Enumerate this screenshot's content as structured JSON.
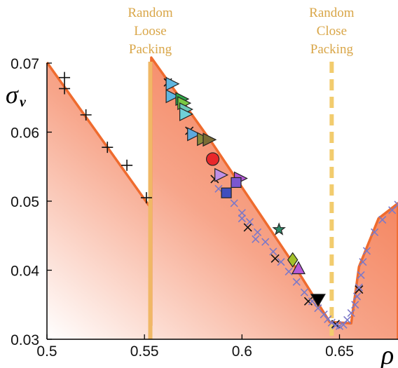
{
  "chart_data": {
    "type": "scatter",
    "xlabel": "ρ",
    "ylabel": "σ",
    "ylabel_sub": "v",
    "xlim": [
      0.5,
      0.68
    ],
    "ylim": [
      0.03,
      0.07
    ],
    "xticks": [
      "0.5",
      "0.55",
      "0.6",
      "0.65"
    ],
    "xtick_values": [
      0.5,
      0.55,
      0.6,
      0.65
    ],
    "yticks": [
      "0.03",
      "0.04",
      "0.05",
      "0.06",
      "0.07"
    ],
    "ytick_values": [
      0.03,
      0.04,
      0.05,
      0.06,
      0.07
    ],
    "annotations": [
      {
        "lines": [
          "Random",
          "Loose",
          "Packing"
        ],
        "x": 0.553
      },
      {
        "lines": [
          "Random",
          "Close",
          "Packing"
        ],
        "x": 0.646
      }
    ],
    "vlines": [
      {
        "x": 0.553,
        "style": "solid",
        "color": "#f0b866"
      },
      {
        "x": 0.646,
        "style": "dashed",
        "color": "#f2cc6e"
      }
    ],
    "boundary": [
      [
        0.5,
        0.0701
      ],
      [
        0.553,
        0.0491
      ],
      [
        0.553,
        0.032
      ],
      [
        0.5535,
        0.032
      ],
      [
        0.5535,
        0.0708
      ],
      [
        0.585,
        0.0583
      ],
      [
        0.625,
        0.0415
      ],
      [
        0.645,
        0.0325
      ],
      [
        0.656,
        0.0323
      ],
      [
        0.66,
        0.0405
      ],
      [
        0.67,
        0.0475
      ],
      [
        0.68,
        0.0497
      ],
      [
        0.68,
        0.03
      ]
    ],
    "colors": {
      "fill": "#f47e54",
      "edge": "#ef6b2e",
      "plus": "#111111",
      "cross_dark": "#111111",
      "cross_blue": "#7b78c8"
    },
    "series": [
      {
        "marker": "plus",
        "points": [
          [
            0.509,
            0.0679
          ],
          [
            0.509,
            0.0663
          ],
          [
            0.52,
            0.0625
          ],
          [
            0.531,
            0.0578
          ],
          [
            0.541,
            0.0552
          ],
          [
            0.551,
            0.0505
          ]
        ]
      },
      {
        "marker": "cross_dark",
        "points": [
          [
            0.562,
            0.0672
          ],
          [
            0.573,
            0.0602
          ],
          [
            0.586,
            0.0532
          ],
          [
            0.603,
            0.0462
          ],
          [
            0.617,
            0.0417
          ],
          [
            0.634,
            0.0355
          ],
          [
            0.648,
            0.0322
          ],
          [
            0.66,
            0.0372
          ]
        ]
      },
      {
        "marker": "cross_blue",
        "points": [
          [
            0.588,
            0.0518
          ],
          [
            0.592,
            0.051
          ],
          [
            0.596,
            0.0497
          ],
          [
            0.6,
            0.0483
          ],
          [
            0.604,
            0.047
          ],
          [
            0.608,
            0.0455
          ],
          [
            0.612,
            0.0441
          ],
          [
            0.616,
            0.0427
          ],
          [
            0.62,
            0.0412
          ],
          [
            0.624,
            0.0398
          ],
          [
            0.628,
            0.0383
          ],
          [
            0.632,
            0.0368
          ],
          [
            0.636,
            0.0355
          ],
          [
            0.639,
            0.0345
          ],
          [
            0.642,
            0.0336
          ],
          [
            0.644,
            0.0329
          ],
          [
            0.646,
            0.0324
          ],
          [
            0.648,
            0.032
          ],
          [
            0.65,
            0.0319
          ],
          [
            0.652,
            0.0321
          ],
          [
            0.654,
            0.0328
          ],
          [
            0.656,
            0.0338
          ],
          [
            0.658,
            0.035
          ],
          [
            0.659,
            0.0362
          ],
          [
            0.66,
            0.0375
          ],
          [
            0.661,
            0.0393
          ],
          [
            0.662,
            0.0412
          ],
          [
            0.664,
            0.0428
          ],
          [
            0.668,
            0.0455
          ],
          [
            0.672,
            0.0473
          ],
          [
            0.677,
            0.0487
          ],
          [
            0.68,
            0.0495
          ],
          [
            0.6,
            0.0475
          ],
          [
            0.607,
            0.0445
          ]
        ]
      },
      {
        "marker": "triangle-right",
        "points": [
          {
            "x": 0.564,
            "y": 0.067,
            "color": "#5fb6e0"
          },
          {
            "x": 0.564,
            "y": 0.0652,
            "color": "#5fb6e0"
          },
          {
            "x": 0.569,
            "y": 0.0648,
            "color": "#2fa84a"
          },
          {
            "x": 0.57,
            "y": 0.0642,
            "color": "#7ac943"
          },
          {
            "x": 0.571,
            "y": 0.0633,
            "color": "#6cc7b8"
          },
          {
            "x": 0.571,
            "y": 0.0626,
            "color": "#6fd0d8"
          },
          {
            "x": 0.575,
            "y": 0.0597,
            "color": "#5fa9dd"
          },
          {
            "x": 0.58,
            "y": 0.059,
            "color": "#8a8a3a"
          },
          {
            "x": 0.583,
            "y": 0.0589,
            "color": "#7b6d35"
          },
          {
            "x": 0.589,
            "y": 0.0538,
            "color": "#c090e6"
          },
          {
            "x": 0.599,
            "y": 0.0533,
            "color": "#b258d6"
          }
        ]
      },
      {
        "marker": "circle",
        "points": [
          {
            "x": 0.585,
            "y": 0.0561,
            "color": "#e8282a"
          }
        ]
      },
      {
        "marker": "square",
        "points": [
          {
            "x": 0.592,
            "y": 0.0512,
            "color": "#3f4fbf"
          },
          {
            "x": 0.597,
            "y": 0.0527,
            "color": "#7a57d0"
          }
        ]
      },
      {
        "marker": "star",
        "points": [
          {
            "x": 0.619,
            "y": 0.0459,
            "color": "#2e8b6a"
          }
        ]
      },
      {
        "marker": "diamond",
        "points": [
          {
            "x": 0.626,
            "y": 0.0415,
            "color": "#a2c12b"
          }
        ]
      },
      {
        "marker": "triangle-up",
        "points": [
          {
            "x": 0.629,
            "y": 0.0403,
            "color": "#b65ad9"
          }
        ]
      },
      {
        "marker": "triangle-down",
        "points": [
          {
            "x": 0.639,
            "y": 0.0357,
            "color": "#000000"
          }
        ]
      }
    ]
  }
}
